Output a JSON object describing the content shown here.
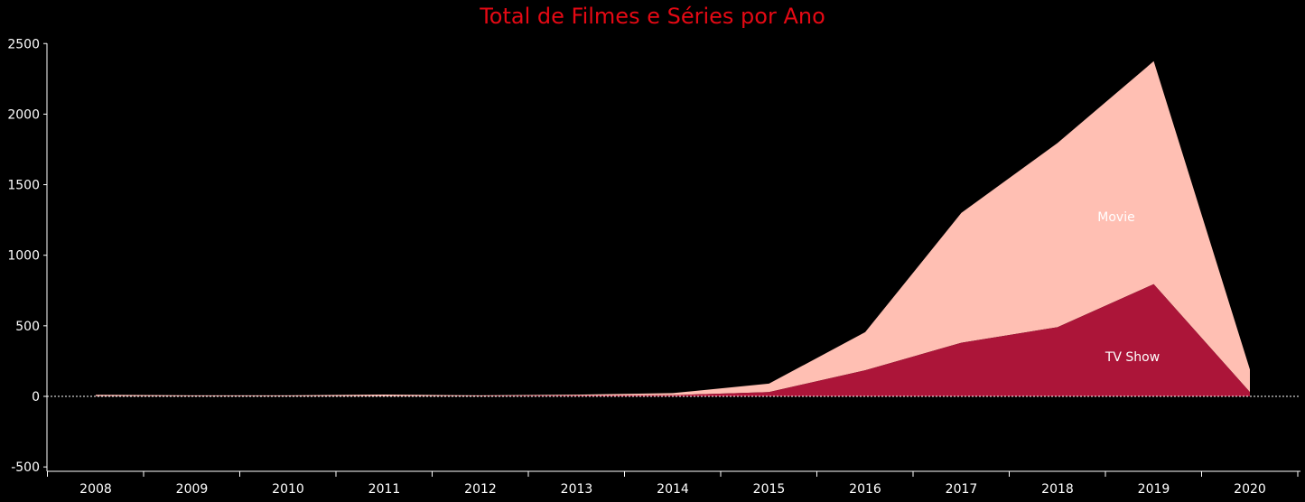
{
  "chart_data": {
    "type": "area",
    "stacked": true,
    "title": "Total de Filmes e Séries por Ano",
    "xlabel": "",
    "ylabel": "",
    "x": [
      "2008",
      "2009",
      "2010",
      "2011",
      "2012",
      "2013",
      "2014",
      "2015",
      "2016",
      "2017",
      "2018",
      "2019",
      "2020"
    ],
    "ylim": [
      -550,
      2550
    ],
    "yticks": [
      "2500",
      "2000",
      "1500",
      "1000",
      "500",
      "0",
      "-500"
    ],
    "ytick_values": [
      2500,
      2000,
      1500,
      1000,
      500,
      0,
      -500
    ],
    "series": [
      {
        "name": "TV Show",
        "color": "#ac1539",
        "values": [
          1,
          1,
          1,
          1,
          3,
          6,
          8,
          30,
          185,
          380,
          490,
          795,
          30
        ]
      },
      {
        "name": "Movie",
        "color": "#ffbfb3",
        "values": [
          10,
          6,
          6,
          12,
          4,
          6,
          15,
          60,
          270,
          920,
          1305,
          1580,
          160
        ]
      }
    ],
    "grid": false,
    "legend": "none"
  }
}
